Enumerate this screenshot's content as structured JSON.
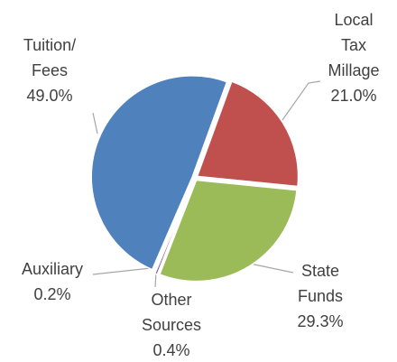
{
  "chart_data": {
    "type": "pie",
    "categories": [
      "Local Tax\nMillage",
      "State\nFunds",
      "Other\nSources",
      "Auxiliary",
      "Tuition/\nFees"
    ],
    "values": [
      21.0,
      29.3,
      0.4,
      0.2,
      49.0
    ],
    "value_labels": [
      "21.0%",
      "29.3%",
      "0.4%",
      "0.2%",
      "49.0%"
    ],
    "colors": [
      "#c0504d",
      "#9bbb59",
      "#8064a2",
      "#4bacc6",
      "#4f81bd"
    ]
  }
}
